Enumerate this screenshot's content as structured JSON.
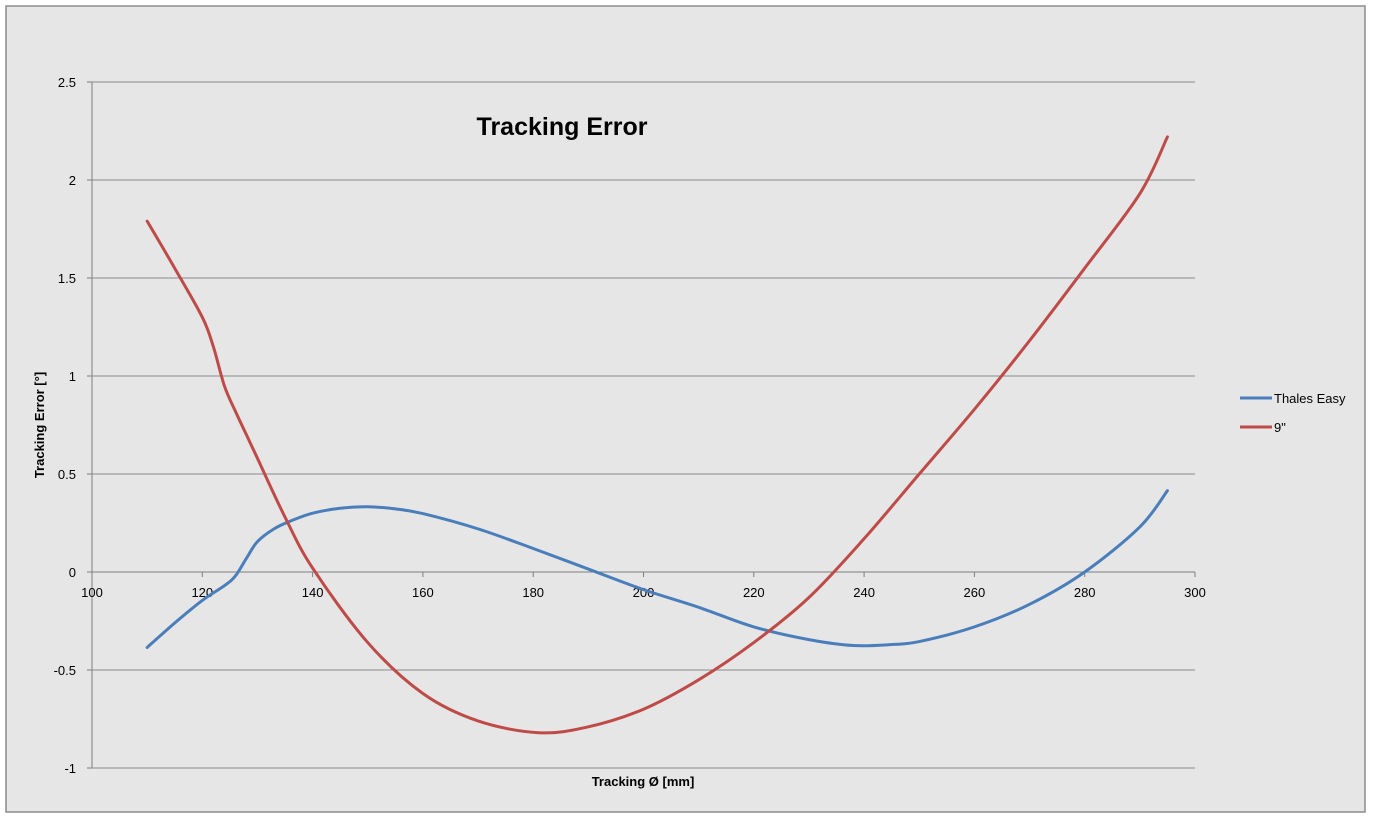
{
  "colors": {
    "background": "#e6e6e6",
    "border": "#8c8c8c",
    "gridline": "#8a8a8a",
    "axis": "#7f7f7f",
    "text": "#000000"
  },
  "chart_data": {
    "type": "line",
    "title": "Tracking Error",
    "xlabel": "Tracking Ø [mm]",
    "ylabel": "Tracking Error [°]",
    "xlim": [
      100,
      300
    ],
    "ylim": [
      -1,
      2.5
    ],
    "x_ticks": [
      "100",
      "120",
      "140",
      "160",
      "180",
      "200",
      "220",
      "240",
      "260",
      "280",
      "300"
    ],
    "y_ticks": [
      "-1",
      "-0.5",
      "0",
      "0.5",
      "1",
      "1.5",
      "2",
      "2.5"
    ],
    "grid": true,
    "legend_position": "right",
    "series": [
      {
        "name": "Thales Easy",
        "color": "#4a7ebb",
        "x": [
          110,
          115,
          120,
          124,
          126,
          128,
          130,
          133,
          136,
          140,
          145,
          150,
          155,
          160,
          170,
          180,
          190,
          200,
          210,
          220,
          230,
          238,
          245,
          250,
          260,
          270,
          280,
          290,
          295
        ],
        "y": [
          -0.385,
          -0.26,
          -0.145,
          -0.07,
          -0.02,
          0.07,
          0.155,
          0.22,
          0.26,
          0.3,
          0.325,
          0.333,
          0.322,
          0.298,
          0.22,
          0.12,
          0.015,
          -0.09,
          -0.18,
          -0.28,
          -0.345,
          -0.375,
          -0.37,
          -0.355,
          -0.28,
          -0.165,
          0.0,
          0.23,
          0.415
        ]
      },
      {
        "name": "9\"",
        "color": "#be4b48",
        "x": [
          110,
          115,
          120,
          122,
          124,
          126,
          128,
          130,
          135,
          140,
          150,
          160,
          170,
          181,
          190,
          200,
          210,
          220,
          230,
          240,
          250,
          260,
          270,
          280,
          290,
          295
        ],
        "y": [
          1.79,
          1.55,
          1.3,
          1.15,
          0.95,
          0.82,
          0.7,
          0.58,
          0.28,
          0.02,
          -0.36,
          -0.62,
          -0.76,
          -0.82,
          -0.79,
          -0.7,
          -0.55,
          -0.36,
          -0.13,
          0.17,
          0.5,
          0.83,
          1.18,
          1.55,
          1.93,
          2.22
        ]
      }
    ]
  }
}
